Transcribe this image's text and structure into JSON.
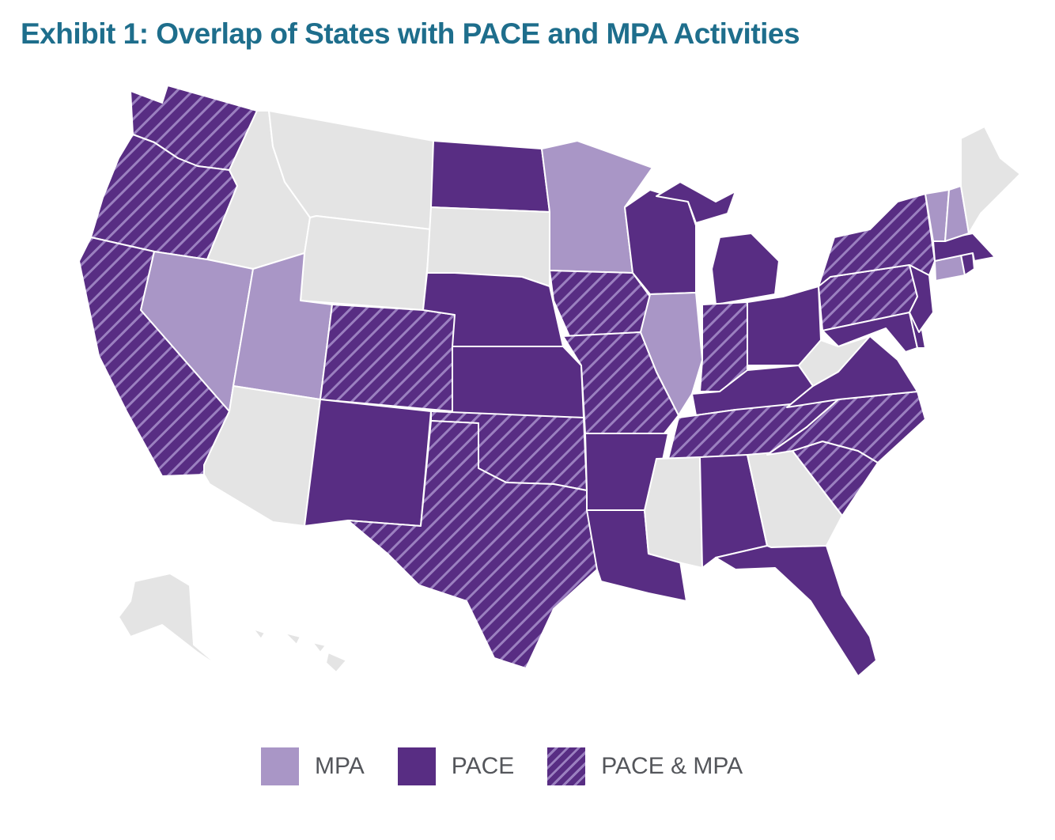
{
  "title": "Exhibit 1: Overlap of States with PACE and MPA Activities",
  "colors": {
    "mpa": "#a996c6",
    "pace": "#582d83",
    "pace_mpa_base": "#582d83",
    "pace_mpa_stripe": "#9b80c0",
    "none": "#e4e4e4",
    "title": "#1e6e8c"
  },
  "legend": {
    "mpa": "MPA",
    "pace": "PACE",
    "pace_mpa": "PACE & MPA"
  },
  "states": {
    "WA": "pace_mpa",
    "OR": "pace_mpa",
    "CA": "pace_mpa",
    "ID": "none",
    "NV": "mpa",
    "MT": "none",
    "WY": "none",
    "UT": "mpa",
    "AZ": "none",
    "CO": "pace_mpa",
    "NM": "pace",
    "ND": "pace",
    "SD": "none",
    "NE": "pace",
    "KS": "pace",
    "OK": "pace_mpa",
    "TX": "pace_mpa",
    "MN": "mpa",
    "IA": "pace_mpa",
    "MO": "pace_mpa",
    "AR": "pace",
    "LA": "pace",
    "WI": "pace",
    "IL": "mpa",
    "MI": "pace",
    "IN": "pace_mpa",
    "OH": "pace",
    "KY": "pace",
    "TN": "pace_mpa",
    "MS": "none",
    "AL": "pace",
    "GA": "none",
    "FL": "pace",
    "SC": "pace_mpa",
    "NC": "pace_mpa",
    "VA": "pace",
    "WV": "none",
    "MD": "pace",
    "DE": "pace",
    "NJ": "pace",
    "PA": "pace_mpa",
    "NY": "pace_mpa",
    "CT": "mpa",
    "RI": "pace",
    "MA": "pace",
    "VT": "mpa",
    "NH": "mpa",
    "ME": "none",
    "AK": "none",
    "HI": "none"
  }
}
